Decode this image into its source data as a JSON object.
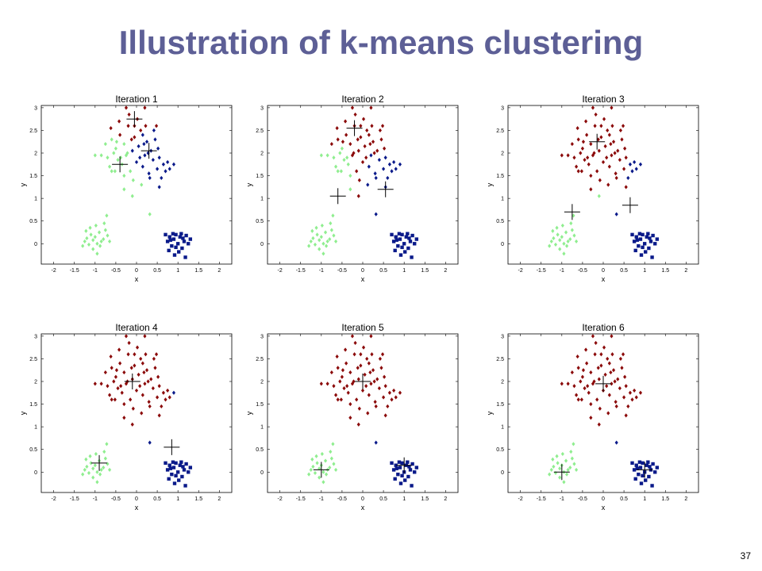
{
  "slide": {
    "title": "Illustration of k-means clustering",
    "page_number": "37"
  },
  "colors": {
    "title": "#5d5f96",
    "cluster_red": "#8b0a0a",
    "cluster_green": "#90ee90",
    "cluster_blue": "#0a1a8a",
    "centroid": "#000000"
  },
  "points": {
    "blob_a_green": [
      [
        -1.3,
        -0.05
      ],
      [
        -1.25,
        0.05
      ],
      [
        -1.2,
        0.12
      ],
      [
        -1.15,
        -0.02
      ],
      [
        -1.1,
        0.2
      ],
      [
        -1.05,
        0.08
      ],
      [
        -1.0,
        0.15
      ],
      [
        -0.95,
        0.0
      ],
      [
        -0.9,
        0.25
      ],
      [
        -0.85,
        0.05
      ],
      [
        -0.8,
        0.1
      ],
      [
        -0.75,
        0.3
      ],
      [
        -0.7,
        0.18
      ],
      [
        -0.65,
        0.05
      ],
      [
        -1.22,
        0.28
      ],
      [
        -1.12,
        0.35
      ],
      [
        -0.98,
        0.4
      ],
      [
        -0.88,
        -0.05
      ],
      [
        -0.78,
        0.45
      ],
      [
        -1.05,
        -0.12
      ],
      [
        -0.72,
        0.62
      ],
      [
        -0.95,
        -0.22
      ]
    ],
    "blob_c_blue": [
      [
        0.7,
        0.2
      ],
      [
        0.75,
        0.05
      ],
      [
        0.8,
        0.15
      ],
      [
        0.85,
        -0.05
      ],
      [
        0.9,
        0.1
      ],
      [
        0.95,
        0.2
      ],
      [
        1.0,
        0.0
      ],
      [
        1.05,
        0.15
      ],
      [
        1.1,
        -0.1
      ],
      [
        1.15,
        0.05
      ],
      [
        1.2,
        0.18
      ],
      [
        0.78,
        -0.15
      ],
      [
        0.92,
        -0.25
      ],
      [
        1.08,
        0.22
      ],
      [
        1.25,
        0.0
      ],
      [
        0.88,
        0.22
      ],
      [
        1.02,
        -0.18
      ],
      [
        1.18,
        -0.3
      ],
      [
        0.82,
        0.08
      ],
      [
        1.12,
        0.12
      ],
      [
        0.95,
        -0.08
      ],
      [
        1.3,
        0.1
      ]
    ],
    "blob_b_main": [
      [
        -0.6,
        2.3
      ],
      [
        -0.55,
        2.0
      ],
      [
        -0.5,
        2.1
      ],
      [
        -0.45,
        1.85
      ],
      [
        -0.4,
        2.4
      ],
      [
        -0.35,
        1.75
      ],
      [
        -0.3,
        2.2
      ],
      [
        -0.25,
        1.95
      ],
      [
        -0.2,
        2.6
      ],
      [
        -0.15,
        1.6
      ],
      [
        -0.1,
        2.05
      ],
      [
        -0.05,
        2.35
      ],
      [
        0.0,
        1.8
      ],
      [
        0.05,
        2.15
      ],
      [
        0.1,
        2.5
      ],
      [
        0.15,
        1.7
      ],
      [
        0.2,
        1.95
      ],
      [
        0.25,
        2.25
      ],
      [
        0.3,
        1.55
      ],
      [
        0.35,
        2.05
      ],
      [
        0.4,
        1.85
      ],
      [
        0.45,
        2.3
      ],
      [
        0.5,
        1.65
      ],
      [
        0.55,
        1.9
      ],
      [
        0.6,
        1.45
      ],
      [
        0.65,
        1.75
      ],
      [
        0.7,
        1.6
      ],
      [
        0.75,
        1.8
      ],
      [
        0.8,
        1.65
      ],
      [
        0.9,
        1.75
      ],
      [
        -0.7,
        1.9
      ],
      [
        -0.65,
        1.7
      ],
      [
        -0.62,
        2.55
      ],
      [
        -0.52,
        1.6
      ],
      [
        -0.42,
        2.7
      ],
      [
        -0.3,
        1.5
      ],
      [
        -0.18,
        2.85
      ],
      [
        -0.08,
        1.4
      ],
      [
        0.02,
        2.75
      ],
      [
        0.12,
        1.3
      ],
      [
        0.22,
        2.6
      ],
      [
        0.32,
        1.45
      ],
      [
        0.42,
        2.5
      ],
      [
        0.52,
        2.1
      ],
      [
        -0.75,
        2.2
      ],
      [
        -0.48,
        2.25
      ],
      [
        -0.22,
        2.0
      ],
      [
        0.08,
        1.9
      ],
      [
        0.28,
        2.0
      ],
      [
        -0.38,
        1.9
      ],
      [
        -0.12,
        2.3
      ],
      [
        0.18,
        2.2
      ],
      [
        -0.85,
        1.95
      ],
      [
        -0.1,
        1.05
      ],
      [
        -0.3,
        1.2
      ],
      [
        -0.25,
        3.0
      ],
      [
        0.2,
        3.0
      ],
      [
        0.55,
        1.25
      ],
      [
        -0.6,
        1.6
      ],
      [
        0.48,
        2.6
      ],
      [
        -0.05,
        2.6
      ],
      [
        0.15,
        2.4
      ]
    ],
    "outliers": [
      [
        -1.0,
        1.95
      ],
      [
        0.32,
        0.65
      ]
    ]
  },
  "chart_data": [
    {
      "type": "scatter",
      "title": "Iteration 1",
      "xlabel": "x",
      "ylabel": "y",
      "xlim": [
        -2.3,
        2.3
      ],
      "ylim": [
        -0.45,
        3.05
      ],
      "xticks": [
        "-2",
        "-1.5",
        "-1",
        "-0.5",
        "0",
        "0.5",
        "1",
        "1.5",
        "2"
      ],
      "yticks": [
        "0",
        "0.5",
        "1",
        "1.5",
        "2",
        "2.5",
        "3"
      ],
      "centroids": [
        [
          -0.4,
          1.75
        ],
        [
          -0.05,
          2.75
        ],
        [
          0.3,
          2.05
        ]
      ],
      "clusters": {
        "blob_a_green": "green",
        "blob_c_blue": "blue",
        "outliers": [
          "green",
          "green"
        ],
        "blob_b_rule": {
          "method": "nearest-centroid",
          "map": [
            "green",
            "red",
            "blue"
          ]
        }
      }
    },
    {
      "type": "scatter",
      "title": "Iteration 2",
      "xlabel": "x",
      "ylabel": "y",
      "xlim": [
        -2.3,
        2.3
      ],
      "ylim": [
        -0.45,
        3.05
      ],
      "xticks": [
        "-2",
        "-1.5",
        "-1",
        "-0.5",
        "0",
        "0.5",
        "1",
        "1.5",
        "2"
      ],
      "yticks": [
        "0",
        "0.5",
        "1",
        "1.5",
        "2",
        "2.5",
        "3"
      ],
      "centroids": [
        [
          -0.6,
          1.05
        ],
        [
          -0.2,
          2.55
        ],
        [
          0.55,
          1.2
        ]
      ],
      "clusters": {
        "blob_a_green": "green",
        "blob_c_blue": "blue",
        "outliers": [
          "green",
          "blue"
        ],
        "blob_b_rule": {
          "method": "region",
          "map": [
            "green",
            "red",
            "blue"
          ]
        }
      }
    },
    {
      "type": "scatter",
      "title": "Iteration 3",
      "xlabel": "x",
      "ylabel": "y",
      "xlim": [
        -2.3,
        2.3
      ],
      "ylim": [
        -0.45,
        3.05
      ],
      "xticks": [
        "-2",
        "-1.5",
        "-1",
        "-0.5",
        "0",
        "0.5",
        "1",
        "1.5",
        "2"
      ],
      "yticks": [
        "0",
        "0.5",
        "1",
        "1.5",
        "2",
        "2.5",
        "3"
      ],
      "centroids": [
        [
          -0.75,
          0.7
        ],
        [
          -0.15,
          2.25
        ],
        [
          0.65,
          0.85
        ]
      ],
      "clusters": {
        "blob_a_green": "green",
        "blob_c_blue": "blue",
        "outliers": [
          "red",
          "blue"
        ],
        "blob_b_rule": {
          "method": "region3",
          "map": [
            "green",
            "red",
            "blue"
          ]
        }
      }
    },
    {
      "type": "scatter",
      "title": "Iteration 4",
      "xlabel": "x",
      "ylabel": "y",
      "xlim": [
        -2.3,
        2.3
      ],
      "ylim": [
        -0.45,
        3.05
      ],
      "xticks": [
        "-2",
        "-1.5",
        "-1",
        "-0.5",
        "0",
        "0.5",
        "1",
        "1.5",
        "2"
      ],
      "yticks": [
        "0",
        "0.5",
        "1",
        "1.5",
        "2",
        "2.5",
        "3"
      ],
      "centroids": [
        [
          -0.9,
          0.2
        ],
        [
          -0.1,
          2.0
        ],
        [
          0.85,
          0.55
        ]
      ],
      "clusters": {
        "blob_a_green": "green",
        "blob_c_blue": "blue",
        "outliers": [
          "red",
          "blue"
        ],
        "blob_b_rule": {
          "method": "region4",
          "map": [
            "green",
            "red",
            "blue"
          ]
        }
      }
    },
    {
      "type": "scatter",
      "title": "Iteration 5",
      "xlabel": "x",
      "ylabel": "y",
      "xlim": [
        -2.3,
        2.3
      ],
      "ylim": [
        -0.45,
        3.05
      ],
      "xticks": [
        "-2",
        "-1.5",
        "-1",
        "-0.5",
        "0",
        "0.5",
        "1",
        "1.5",
        "2"
      ],
      "yticks": [
        "0",
        "0.5",
        "1",
        "1.5",
        "2",
        "2.5",
        "3"
      ],
      "centroids": [
        [
          -1.0,
          0.05
        ],
        [
          0.0,
          2.0
        ],
        [
          1.0,
          0.15
        ]
      ],
      "clusters": {
        "blob_a_green": "green",
        "blob_c_blue": "blue",
        "outliers": [
          "red",
          "blue"
        ],
        "blob_b_rule": {
          "method": "all",
          "map": [
            "green",
            "red",
            "blue"
          ]
        }
      }
    },
    {
      "type": "scatter",
      "title": "Iteration 6",
      "xlabel": "x",
      "ylabel": "y",
      "xlim": [
        -2.3,
        2.3
      ],
      "ylim": [
        -0.45,
        3.05
      ],
      "xticks": [
        "-2",
        "-1.5",
        "-1",
        "-0.5",
        "0",
        "0.5",
        "1",
        "1.5",
        "2"
      ],
      "yticks": [
        "0",
        "0.5",
        "1",
        "1.5",
        "2",
        "2.5",
        "3"
      ],
      "centroids": [
        [
          -1.0,
          0.0
        ],
        [
          0.0,
          1.95
        ],
        [
          1.0,
          0.05
        ]
      ],
      "clusters": {
        "blob_a_green": "green",
        "blob_c_blue": "blue",
        "outliers": [
          "red",
          "blue"
        ],
        "blob_b_rule": {
          "method": "all",
          "map": [
            "green",
            "red",
            "blue"
          ]
        }
      }
    }
  ]
}
